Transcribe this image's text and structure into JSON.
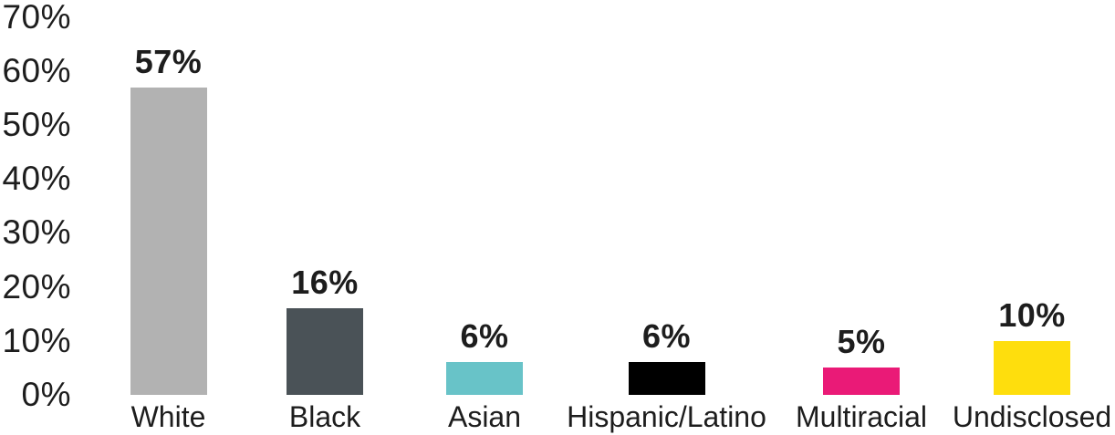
{
  "chart_data": {
    "type": "bar",
    "title": "",
    "categories": [
      "White",
      "Black",
      "Asian",
      "Hispanic/Latino",
      "Multiracial",
      "Undisclosed"
    ],
    "values": [
      57,
      16,
      6,
      6,
      5,
      10
    ],
    "value_labels": [
      "57%",
      "16%",
      "6%",
      "6%",
      "5%",
      "10%"
    ],
    "bar_colors": [
      "#b2b2b2",
      "#4a5257",
      "#68c3c8",
      "#000000",
      "#ea1a77",
      "#fede0d"
    ],
    "y_ticks": [
      0,
      10,
      20,
      30,
      40,
      50,
      60,
      70
    ],
    "y_tick_labels": [
      "0%",
      "10%",
      "20%",
      "30%",
      "40%",
      "50%",
      "60%",
      "70%"
    ],
    "xlabel": "",
    "ylabel": "",
    "ylim": [
      0,
      70
    ],
    "grid": false,
    "axis_lines": false,
    "legend_position": "none",
    "text_color": "#1d1d1d",
    "background_color": "#ffffff"
  }
}
